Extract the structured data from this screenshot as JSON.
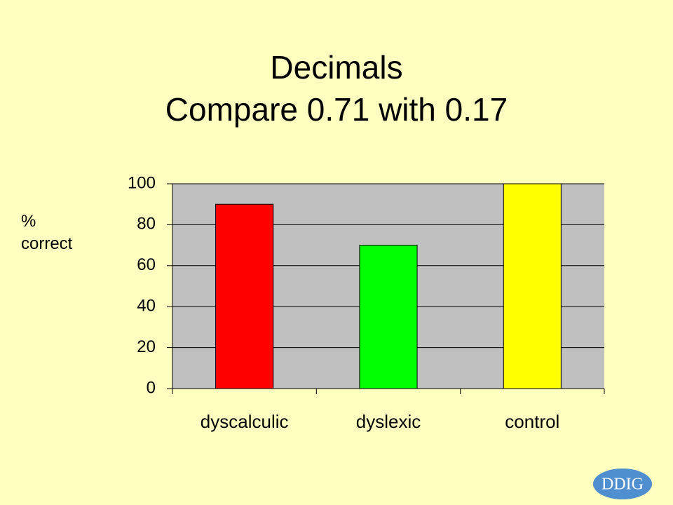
{
  "chart_data": {
    "type": "bar",
    "title": "Decimals",
    "subtitle": "Compare 0.71 with 0.17",
    "y_label": "% correct",
    "categories": [
      "dyscalculic",
      "dyslexic",
      "control"
    ],
    "values": [
      90,
      70,
      100
    ],
    "colors": [
      "#ff0000",
      "#00ff00",
      "#ffff00"
    ],
    "ylim": [
      0,
      100
    ],
    "yticks": [
      0,
      20,
      40,
      60,
      80,
      100
    ],
    "grid": true
  },
  "logo": "DDIG"
}
